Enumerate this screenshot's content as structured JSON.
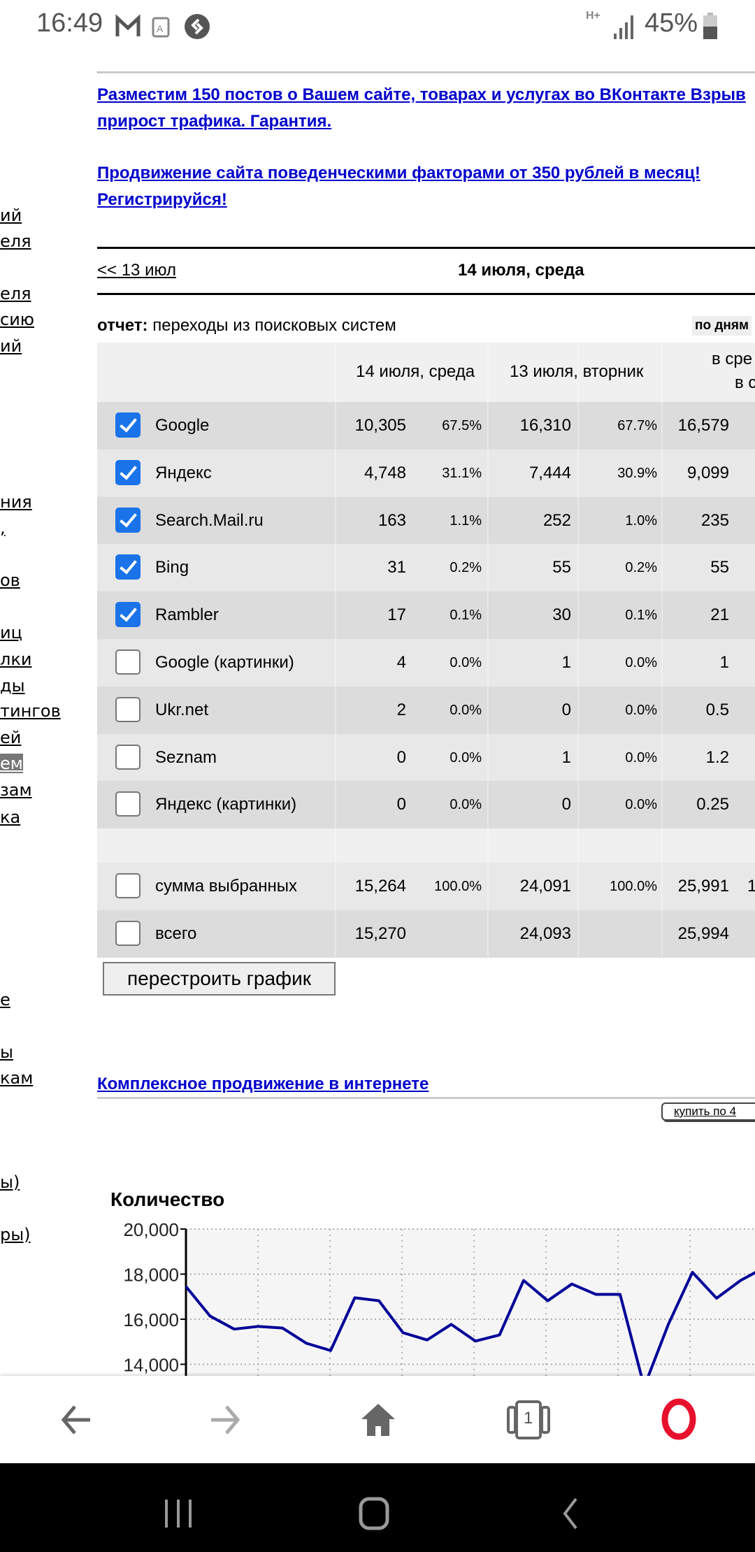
{
  "status_bar": {
    "time": "16:49",
    "network": "H+",
    "battery": "45%",
    "icons": [
      "gmail-icon",
      "translate-icon",
      "shazam-icon",
      "signal-icon",
      "battery-icon"
    ]
  },
  "sidebar": {
    "items": [
      "ий",
      "еля",
      "еля",
      "сию",
      "ий",
      "ния",
      ",",
      "ов",
      "иц",
      "лки",
      "ды",
      "тингов",
      "ей",
      "ем",
      "зам",
      "ка",
      "е",
      "ы",
      "кам",
      "ы)",
      "ры)"
    ],
    "selected": "ем"
  },
  "ads": {
    "link1_line1": "Разместим 150 постов о Вашем сайте, товарах и услугах во ВКонтакте Взрыв",
    "link1_line2": "прирост трафика. Гарантия.",
    "link2_line1": "Продвижение сайта поведенческими факторами от 350 рублей в месяц!",
    "link2_line2": "Регистрируйся!",
    "link3": "Комплексное продвижение в интернете",
    "buy_button": "купить по 4"
  },
  "date_nav": {
    "prev": "<< 13 июл",
    "current": "14 июля, среда"
  },
  "report": {
    "label": "отчет:",
    "name": "переходы из поисковых систем",
    "period": "по дням"
  },
  "table": {
    "headers": [
      "14 июля, среда",
      "13 июля, вторник",
      "в сре",
      "в с"
    ],
    "rows": [
      {
        "name": "Google",
        "checked": true,
        "v1": "10,305",
        "p1": "67.5%",
        "v2": "16,310",
        "p2": "67.7%",
        "v3": "16,579"
      },
      {
        "name": "Яндекс",
        "checked": true,
        "v1": "4,748",
        "p1": "31.1%",
        "v2": "7,444",
        "p2": "30.9%",
        "v3": "9,099"
      },
      {
        "name": "Search.Mail.ru",
        "checked": true,
        "v1": "163",
        "p1": "1.1%",
        "v2": "252",
        "p2": "1.0%",
        "v3": "235"
      },
      {
        "name": "Bing",
        "checked": true,
        "v1": "31",
        "p1": "0.2%",
        "v2": "55",
        "p2": "0.2%",
        "v3": "55"
      },
      {
        "name": "Rambler",
        "checked": true,
        "v1": "17",
        "p1": "0.1%",
        "v2": "30",
        "p2": "0.1%",
        "v3": "21"
      },
      {
        "name": "Google (картинки)",
        "checked": false,
        "v1": "4",
        "p1": "0.0%",
        "v2": "1",
        "p2": "0.0%",
        "v3": "1"
      },
      {
        "name": "Ukr.net",
        "checked": false,
        "v1": "2",
        "p1": "0.0%",
        "v2": "0",
        "p2": "0.0%",
        "v3": "0.5"
      },
      {
        "name": "Seznam",
        "checked": false,
        "v1": "0",
        "p1": "0.0%",
        "v2": "1",
        "p2": "0.0%",
        "v3": "1.2"
      },
      {
        "name": "Яндекс (картинки)",
        "checked": false,
        "v1": "0",
        "p1": "0.0%",
        "v2": "0",
        "p2": "0.0%",
        "v3": "0.25"
      }
    ],
    "totals": [
      {
        "name": "сумма выбранных",
        "checked": false,
        "v1": "15,264",
        "p1": "100.0%",
        "v2": "24,091",
        "p2": "100.0%",
        "v3": "25,991",
        "extra": "1"
      },
      {
        "name": "всего",
        "checked": false,
        "v1": "15,270",
        "p1": "",
        "v2": "24,093",
        "p2": "",
        "v3": "25,994",
        "extra": ""
      }
    ],
    "rebuild_button": "перестроить график",
    "checkbox_color": "#1a73e8"
  },
  "chart_data": {
    "type": "line",
    "ylabel": "Количество",
    "yticks": [
      "20,000",
      "18,000",
      "16,000",
      "14,000"
    ],
    "ytick_values": [
      20000,
      18000,
      16000,
      14000
    ],
    "ylim": [
      12000,
      20000
    ],
    "grid": true,
    "line_color": "#000099",
    "values": [
      17450,
      16140,
      15560,
      15680,
      15610,
      14930,
      14610,
      16950,
      16820,
      15400,
      15080,
      15770,
      15030,
      15300,
      17720,
      16820,
      17560,
      17100,
      17100,
      13000,
      15770,
      18080,
      16930,
      17720,
      18300
    ]
  },
  "browser_nav": {
    "tab_count": "1",
    "icons": [
      "back-icon",
      "forward-icon",
      "home-icon",
      "tabs-icon",
      "opera-icon"
    ]
  }
}
